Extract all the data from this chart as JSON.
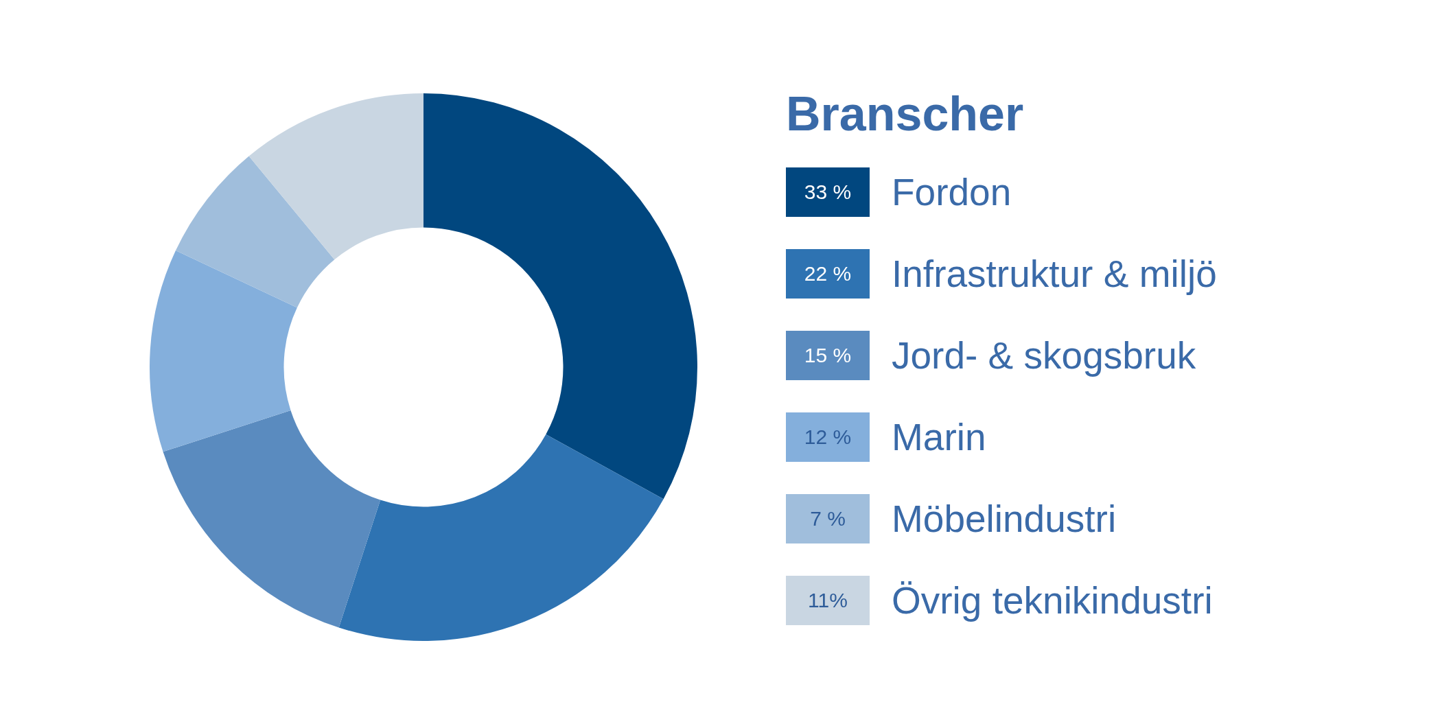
{
  "chart_data": {
    "type": "donut",
    "legend_title": "Branscher",
    "categories": [
      "Fordon",
      "Infrastruktur & miljö",
      "Jord- & skogsbruk",
      "Marin",
      "Möbelindustri",
      "Övrig teknikindustri"
    ],
    "values": [
      33,
      22,
      15,
      12,
      7,
      11
    ],
    "value_labels": [
      "33 %",
      "22 %",
      "15 %",
      "12 %",
      "7 %",
      "11%"
    ],
    "colors": [
      "#01477f",
      "#2e73b2",
      "#5a8bbf",
      "#84afdc",
      "#a0bedc",
      "#c9d6e2"
    ],
    "legend": "right"
  }
}
